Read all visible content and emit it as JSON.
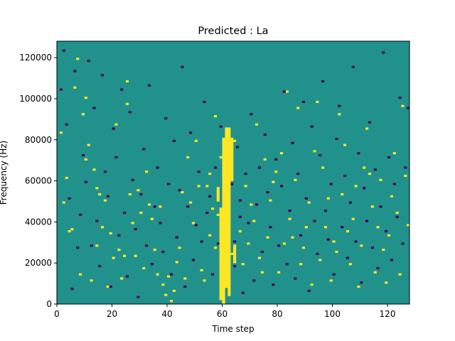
{
  "chart_data": {
    "type": "heatmap",
    "title": "Predicted : La",
    "xlabel": "Time step",
    "ylabel": "Frequency (Hz)",
    "xlim": [
      0,
      128
    ],
    "ylim": [
      0,
      128000
    ],
    "xticks": [
      0,
      20,
      40,
      60,
      80,
      100,
      120
    ],
    "yticks": [
      0,
      20000,
      40000,
      60000,
      80000,
      100000,
      120000
    ],
    "xtick_labels": [
      "0",
      "20",
      "40",
      "60",
      "80",
      "100",
      "120"
    ],
    "ytick_labels": [
      "0",
      "20000",
      "40000",
      "60000",
      "80000",
      "100000",
      "120000"
    ],
    "colormap": "viridis",
    "colors": {
      "background": "#21918c",
      "high": "#fde725",
      "low": "#440154"
    },
    "grid": false,
    "legend": "none",
    "time_bins": 128,
    "freq_bins": 128,
    "freq_bin_hz": 1000,
    "cells": {
      "high": [
        [
          2,
          49
        ],
        [
          3,
          61
        ],
        [
          1,
          83
        ],
        [
          4,
          35
        ],
        [
          5,
          36
        ],
        [
          6,
          105
        ],
        [
          7,
          119
        ],
        [
          8,
          14
        ],
        [
          9,
          92
        ],
        [
          10,
          100
        ],
        [
          10,
          70
        ],
        [
          11,
          77
        ],
        [
          12,
          11
        ],
        [
          13,
          65
        ],
        [
          14,
          28
        ],
        [
          14,
          56
        ],
        [
          15,
          53
        ],
        [
          16,
          37
        ],
        [
          17,
          50
        ],
        [
          18,
          8
        ],
        [
          19,
          34
        ],
        [
          20,
          22
        ],
        [
          21,
          87
        ],
        [
          22,
          26
        ],
        [
          23,
          12
        ],
        [
          24,
          23
        ],
        [
          25,
          97
        ],
        [
          25,
          108
        ],
        [
          26,
          53
        ],
        [
          27,
          39
        ],
        [
          28,
          23
        ],
        [
          29,
          55
        ],
        [
          30,
          44
        ],
        [
          31,
          17
        ],
        [
          32,
          64
        ],
        [
          33,
          48
        ],
        [
          34,
          41
        ],
        [
          35,
          26
        ],
        [
          36,
          14
        ],
        [
          37,
          47
        ],
        [
          38,
          9
        ],
        [
          39,
          4
        ],
        [
          40,
          13
        ],
        [
          41,
          1
        ],
        [
          42,
          6
        ],
        [
          43,
          20
        ],
        [
          44,
          27
        ],
        [
          45,
          54
        ],
        [
          46,
          12
        ],
        [
          47,
          71
        ],
        [
          48,
          49
        ],
        [
          49,
          39
        ],
        [
          50,
          79
        ],
        [
          51,
          57
        ],
        [
          52,
          16
        ],
        [
          53,
          11
        ],
        [
          54,
          57
        ],
        [
          55,
          63
        ],
        [
          55,
          33
        ],
        [
          56,
          46
        ],
        [
          57,
          27
        ],
        [
          57,
          91
        ],
        [
          58,
          43
        ],
        [
          59,
          71
        ],
        [
          60,
          62
        ],
        [
          61,
          37
        ],
        [
          63,
          24
        ],
        [
          64,
          79
        ],
        [
          66,
          35
        ],
        [
          67,
          19
        ],
        [
          68,
          57
        ],
        [
          69,
          29
        ],
        [
          70,
          48
        ],
        [
          71,
          40
        ],
        [
          72,
          87
        ],
        [
          73,
          22
        ],
        [
          74,
          15
        ],
        [
          75,
          70
        ],
        [
          76,
          32
        ],
        [
          77,
          50
        ],
        [
          78,
          59
        ],
        [
          79,
          64
        ],
        [
          80,
          15
        ],
        [
          81,
          73
        ],
        [
          82,
          29
        ],
        [
          83,
          103
        ],
        [
          84,
          41
        ],
        [
          85,
          32
        ],
        [
          86,
          60
        ],
        [
          87,
          95
        ],
        [
          88,
          19
        ],
        [
          89,
          27
        ],
        [
          90,
          37
        ],
        [
          91,
          49
        ],
        [
          92,
          9
        ],
        [
          93,
          74
        ],
        [
          94,
          98
        ],
        [
          95,
          21
        ],
        [
          96,
          66
        ],
        [
          97,
          37
        ],
        [
          98,
          51
        ],
        [
          99,
          11
        ],
        [
          100,
          30
        ],
        [
          101,
          25
        ],
        [
          102,
          92
        ],
        [
          103,
          53
        ],
        [
          104,
          77
        ],
        [
          105,
          35
        ],
        [
          106,
          19
        ],
        [
          107,
          41
        ],
        [
          108,
          57
        ],
        [
          109,
          8
        ],
        [
          110,
          28
        ],
        [
          111,
          66
        ],
        [
          112,
          85
        ],
        [
          113,
          63
        ],
        [
          114,
          47
        ],
        [
          115,
          15
        ],
        [
          116,
          37
        ],
        [
          117,
          60
        ],
        [
          118,
          26
        ],
        [
          119,
          10
        ],
        [
          120,
          33
        ],
        [
          121,
          52
        ],
        [
          122,
          73
        ],
        [
          123,
          44
        ],
        [
          124,
          14
        ],
        [
          125,
          96
        ],
        [
          126,
          62
        ],
        [
          127,
          38
        ]
      ],
      "low": [
        [
          1,
          104
        ],
        [
          2,
          123
        ],
        [
          3,
          87
        ],
        [
          4,
          51
        ],
        [
          5,
          7
        ],
        [
          6,
          113
        ],
        [
          7,
          27
        ],
        [
          8,
          43
        ],
        [
          9,
          72
        ],
        [
          10,
          59
        ],
        [
          11,
          118
        ],
        [
          12,
          28
        ],
        [
          13,
          95
        ],
        [
          14,
          40
        ],
        [
          15,
          18
        ],
        [
          16,
          111
        ],
        [
          17,
          64
        ],
        [
          18,
          52
        ],
        [
          19,
          8
        ],
        [
          20,
          85
        ],
        [
          21,
          71
        ],
        [
          22,
          33
        ],
        [
          23,
          104
        ],
        [
          24,
          44
        ],
        [
          25,
          13
        ],
        [
          26,
          93
        ],
        [
          27,
          60
        ],
        [
          28,
          36
        ],
        [
          29,
          3
        ],
        [
          30,
          53
        ],
        [
          31,
          75
        ],
        [
          32,
          28
        ],
        [
          33,
          106
        ],
        [
          34,
          19
        ],
        [
          35,
          47
        ],
        [
          36,
          66
        ],
        [
          37,
          39
        ],
        [
          38,
          25
        ],
        [
          39,
          90
        ],
        [
          40,
          58
        ],
        [
          41,
          14
        ],
        [
          42,
          79
        ],
        [
          43,
          32
        ],
        [
          44,
          55
        ],
        [
          45,
          115
        ],
        [
          46,
          8
        ],
        [
          47,
          47
        ],
        [
          48,
          83
        ],
        [
          49,
          21
        ],
        [
          50,
          38
        ],
        [
          51,
          64
        ],
        [
          52,
          30
        ],
        [
          53,
          98
        ],
        [
          54,
          44
        ],
        [
          55,
          52
        ],
        [
          56,
          14
        ],
        [
          57,
          66
        ],
        [
          58,
          29
        ],
        [
          59,
          86
        ],
        [
          60,
          46
        ],
        [
          61,
          70
        ],
        [
          62,
          35
        ],
        [
          63,
          58
        ],
        [
          64,
          18
        ],
        [
          65,
          76
        ],
        [
          66,
          42
        ],
        [
          67,
          5
        ],
        [
          68,
          63
        ],
        [
          69,
          39
        ],
        [
          70,
          92
        ],
        [
          71,
          11
        ],
        [
          72,
          48
        ],
        [
          73,
          66
        ],
        [
          74,
          25
        ],
        [
          75,
          82
        ],
        [
          76,
          54
        ],
        [
          77,
          37
        ],
        [
          78,
          9
        ],
        [
          79,
          70
        ],
        [
          80,
          28
        ],
        [
          81,
          57
        ],
        [
          82,
          103
        ],
        [
          83,
          19
        ],
        [
          84,
          45
        ],
        [
          85,
          78
        ],
        [
          86,
          12
        ],
        [
          87,
          63
        ],
        [
          88,
          33
        ],
        [
          89,
          98
        ],
        [
          90,
          51
        ],
        [
          91,
          6
        ],
        [
          92,
          86
        ],
        [
          93,
          40
        ],
        [
          94,
          24
        ],
        [
          95,
          72
        ],
        [
          96,
          108
        ],
        [
          97,
          45
        ],
        [
          98,
          31
        ],
        [
          99,
          58
        ],
        [
          100,
          14
        ],
        [
          101,
          80
        ],
        [
          102,
          96
        ],
        [
          103,
          37
        ],
        [
          104,
          62
        ],
        [
          105,
          22
        ],
        [
          106,
          49
        ],
        [
          107,
          115
        ],
        [
          108,
          30
        ],
        [
          109,
          73
        ],
        [
          110,
          10
        ],
        [
          111,
          56
        ],
        [
          112,
          40
        ],
        [
          113,
          88
        ],
        [
          114,
          27
        ],
        [
          115,
          65
        ],
        [
          116,
          17
        ],
        [
          117,
          47
        ],
        [
          118,
          122
        ],
        [
          119,
          35
        ],
        [
          120,
          71
        ],
        [
          121,
          21
        ],
        [
          122,
          58
        ],
        [
          123,
          42
        ],
        [
          124,
          100
        ],
        [
          125,
          29
        ],
        [
          126,
          66
        ],
        [
          127,
          95
        ],
        [
          62,
          66
        ],
        [
          64,
          30
        ],
        [
          66,
          50
        ]
      ],
      "high_columns": [
        {
          "x": 58,
          "from": 50,
          "to": 56
        },
        {
          "x": 59,
          "from": 2,
          "to": 46
        },
        {
          "x": 60,
          "from": 0,
          "to": 80
        },
        {
          "x": 61,
          "from": 8,
          "to": 85
        },
        {
          "x": 62,
          "from": 4,
          "to": 85
        },
        {
          "x": 63,
          "from": 60,
          "to": 80
        },
        {
          "x": 64,
          "from": 20,
          "to": 28
        }
      ]
    }
  }
}
